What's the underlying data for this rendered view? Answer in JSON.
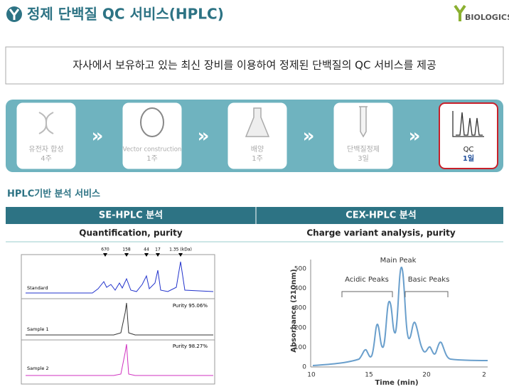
{
  "header": {
    "title": "정제 단백질 QC 서비스(HPLC)",
    "brand": "BIOLOGICS"
  },
  "intro": "자사에서 보유하고 있는 최신 장비를 이용하여 정제된 단백질의 QC 서비스를  제공",
  "process": [
    {
      "label": "유전자 합성",
      "duration": "4주"
    },
    {
      "label": "Vector construction",
      "duration": "1주"
    },
    {
      "label": "배양",
      "duration": "1주"
    },
    {
      "label": "단백질정제",
      "duration": "3일"
    },
    {
      "label": "QC",
      "duration": "1일"
    }
  ],
  "section_title": "HPLC기반 분석 서비스",
  "table": {
    "headers": [
      "SE-HPLC 분석",
      "CEX-HPLC 분석"
    ],
    "rows": [
      [
        "Quantification,  purity",
        "Charge variant analysis, purity"
      ]
    ]
  },
  "se_chart": {
    "markers": [
      "670",
      "158",
      "44",
      "17",
      "1.35 (kDa)"
    ],
    "panels": [
      {
        "label": "Standard"
      },
      {
        "label": "Sample 1",
        "purity": "Purity  95.06%"
      },
      {
        "label": "Sample 2",
        "purity": "Purity 98.27%"
      }
    ]
  },
  "cex_chart": {
    "y_label": "Absorbance (210nm)",
    "x_label": "Time (min)",
    "yticks": [
      "0",
      "100",
      "200",
      "300",
      "400",
      "500"
    ],
    "xticks": [
      "10",
      "15",
      "20",
      "2"
    ],
    "annotations": [
      "Acidic Peaks",
      "Main Peak",
      "Basic Peaks"
    ]
  }
}
